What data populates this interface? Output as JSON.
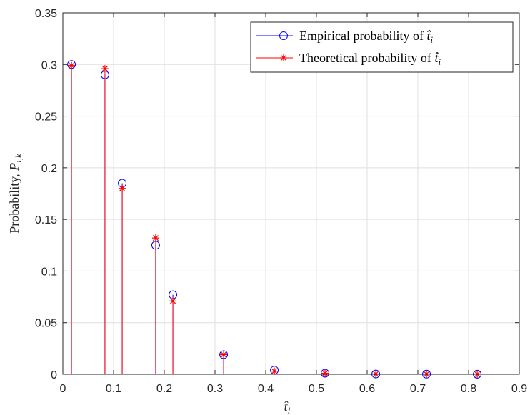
{
  "chart_data": {
    "type": "stem",
    "xlabel": "t̂",
    "xlabel_sub": "i",
    "ylabel_prefix": "Probability, ",
    "ylabel_var": "P",
    "ylabel_sub": "i,k",
    "xlim": [
      0,
      0.9
    ],
    "ylim": [
      0,
      0.35
    ],
    "xticks": [
      0,
      0.1,
      0.2,
      0.3,
      0.4,
      0.5,
      0.6,
      0.7,
      0.8,
      0.9
    ],
    "yticks": [
      0,
      0.05,
      0.1,
      0.15,
      0.2,
      0.25,
      0.3,
      0.35
    ],
    "xtick_labels": [
      "0",
      "0.1",
      "0.2",
      "0.3",
      "0.4",
      "0.5",
      "0.6",
      "0.7",
      "0.8",
      "0.9"
    ],
    "ytick_labels": [
      "0",
      "0.05",
      "0.1",
      "0.15",
      "0.2",
      "0.25",
      "0.3",
      "0.35"
    ],
    "grid": true,
    "legend_position": "top-right",
    "x": [
      0.017,
      0.083,
      0.117,
      0.183,
      0.217,
      0.317,
      0.417,
      0.517,
      0.617,
      0.717,
      0.817
    ],
    "series": [
      {
        "name": "Empirical probability of t̂i",
        "legend_prefix": "Empirical probability of ",
        "legend_var": "t̂",
        "legend_sub": "i",
        "marker": "circle",
        "color": "#0000ff",
        "values": [
          0.3,
          0.29,
          0.185,
          0.125,
          0.077,
          0.019,
          0.004,
          0.001,
          0.0003,
          0.0002,
          0.0001
        ]
      },
      {
        "name": "Theoretical probability of t̂i",
        "legend_prefix": "Theoretical probability of ",
        "legend_var": "t̂",
        "legend_sub": "i",
        "marker": "asterisk",
        "color": "#ff0000",
        "values": [
          0.299,
          0.296,
          0.18,
          0.132,
          0.071,
          0.019,
          0.003,
          0.001,
          0.0003,
          0.0002,
          0.0001
        ]
      }
    ]
  }
}
